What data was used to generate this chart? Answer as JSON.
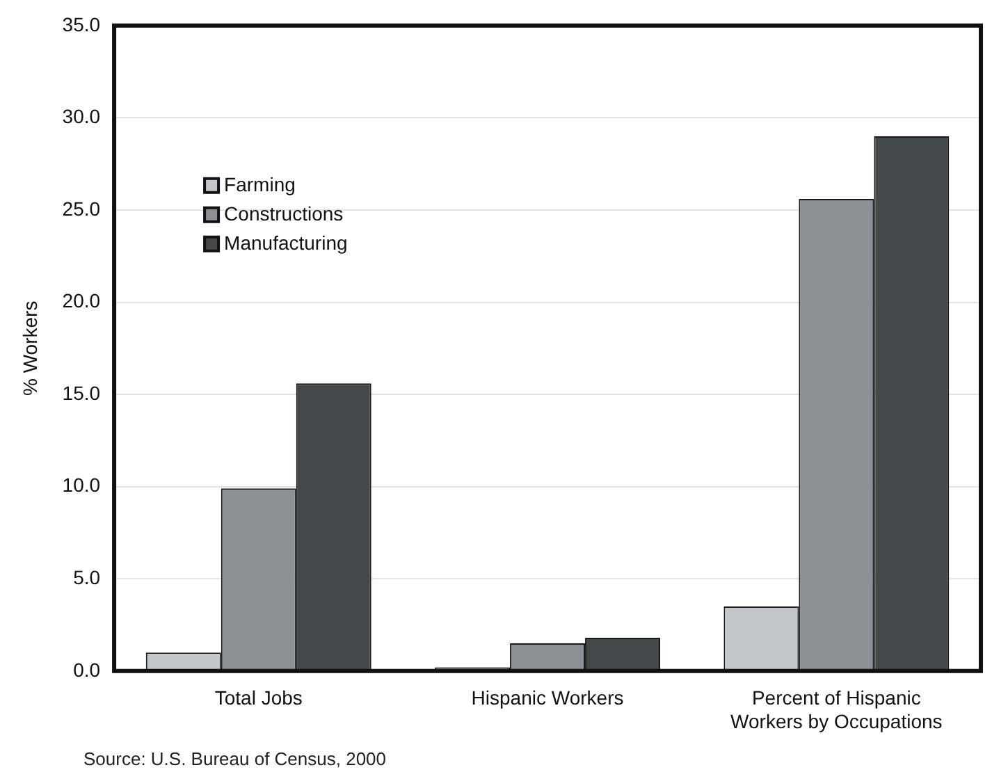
{
  "chart_data": {
    "type": "bar",
    "categories": [
      "Total Jobs",
      "Hispanic Workers",
      [
        "Percent of Hispanic",
        "Workers by Occupations"
      ]
    ],
    "series": [
      {
        "name": "Farming",
        "color": "#c3c7cb",
        "values": [
          1.0,
          0.2,
          3.5
        ]
      },
      {
        "name": "Constructions",
        "color": "#8c9095",
        "values": [
          9.9,
          1.5,
          25.6
        ]
      },
      {
        "name": "Manufacturing",
        "color": "#43484b",
        "values": [
          15.6,
          1.8,
          29.0
        ]
      }
    ],
    "ylabel": "% Workers",
    "ylim": [
      0,
      35
    ],
    "yticks": [
      {
        "value": 0,
        "label": "0.0"
      },
      {
        "value": 5,
        "label": "5.0"
      },
      {
        "value": 10,
        "label": "10.0"
      },
      {
        "value": 15,
        "label": "15.0"
      },
      {
        "value": 20,
        "label": "20.0"
      },
      {
        "value": 25,
        "label": "25.0"
      },
      {
        "value": 30,
        "label": "30.0"
      },
      {
        "value": 35,
        "label": "35.0"
      }
    ],
    "grid": "y",
    "legend": "top left",
    "annotations": [
      "Source: U.S. Bureau of Census, 2000"
    ]
  }
}
